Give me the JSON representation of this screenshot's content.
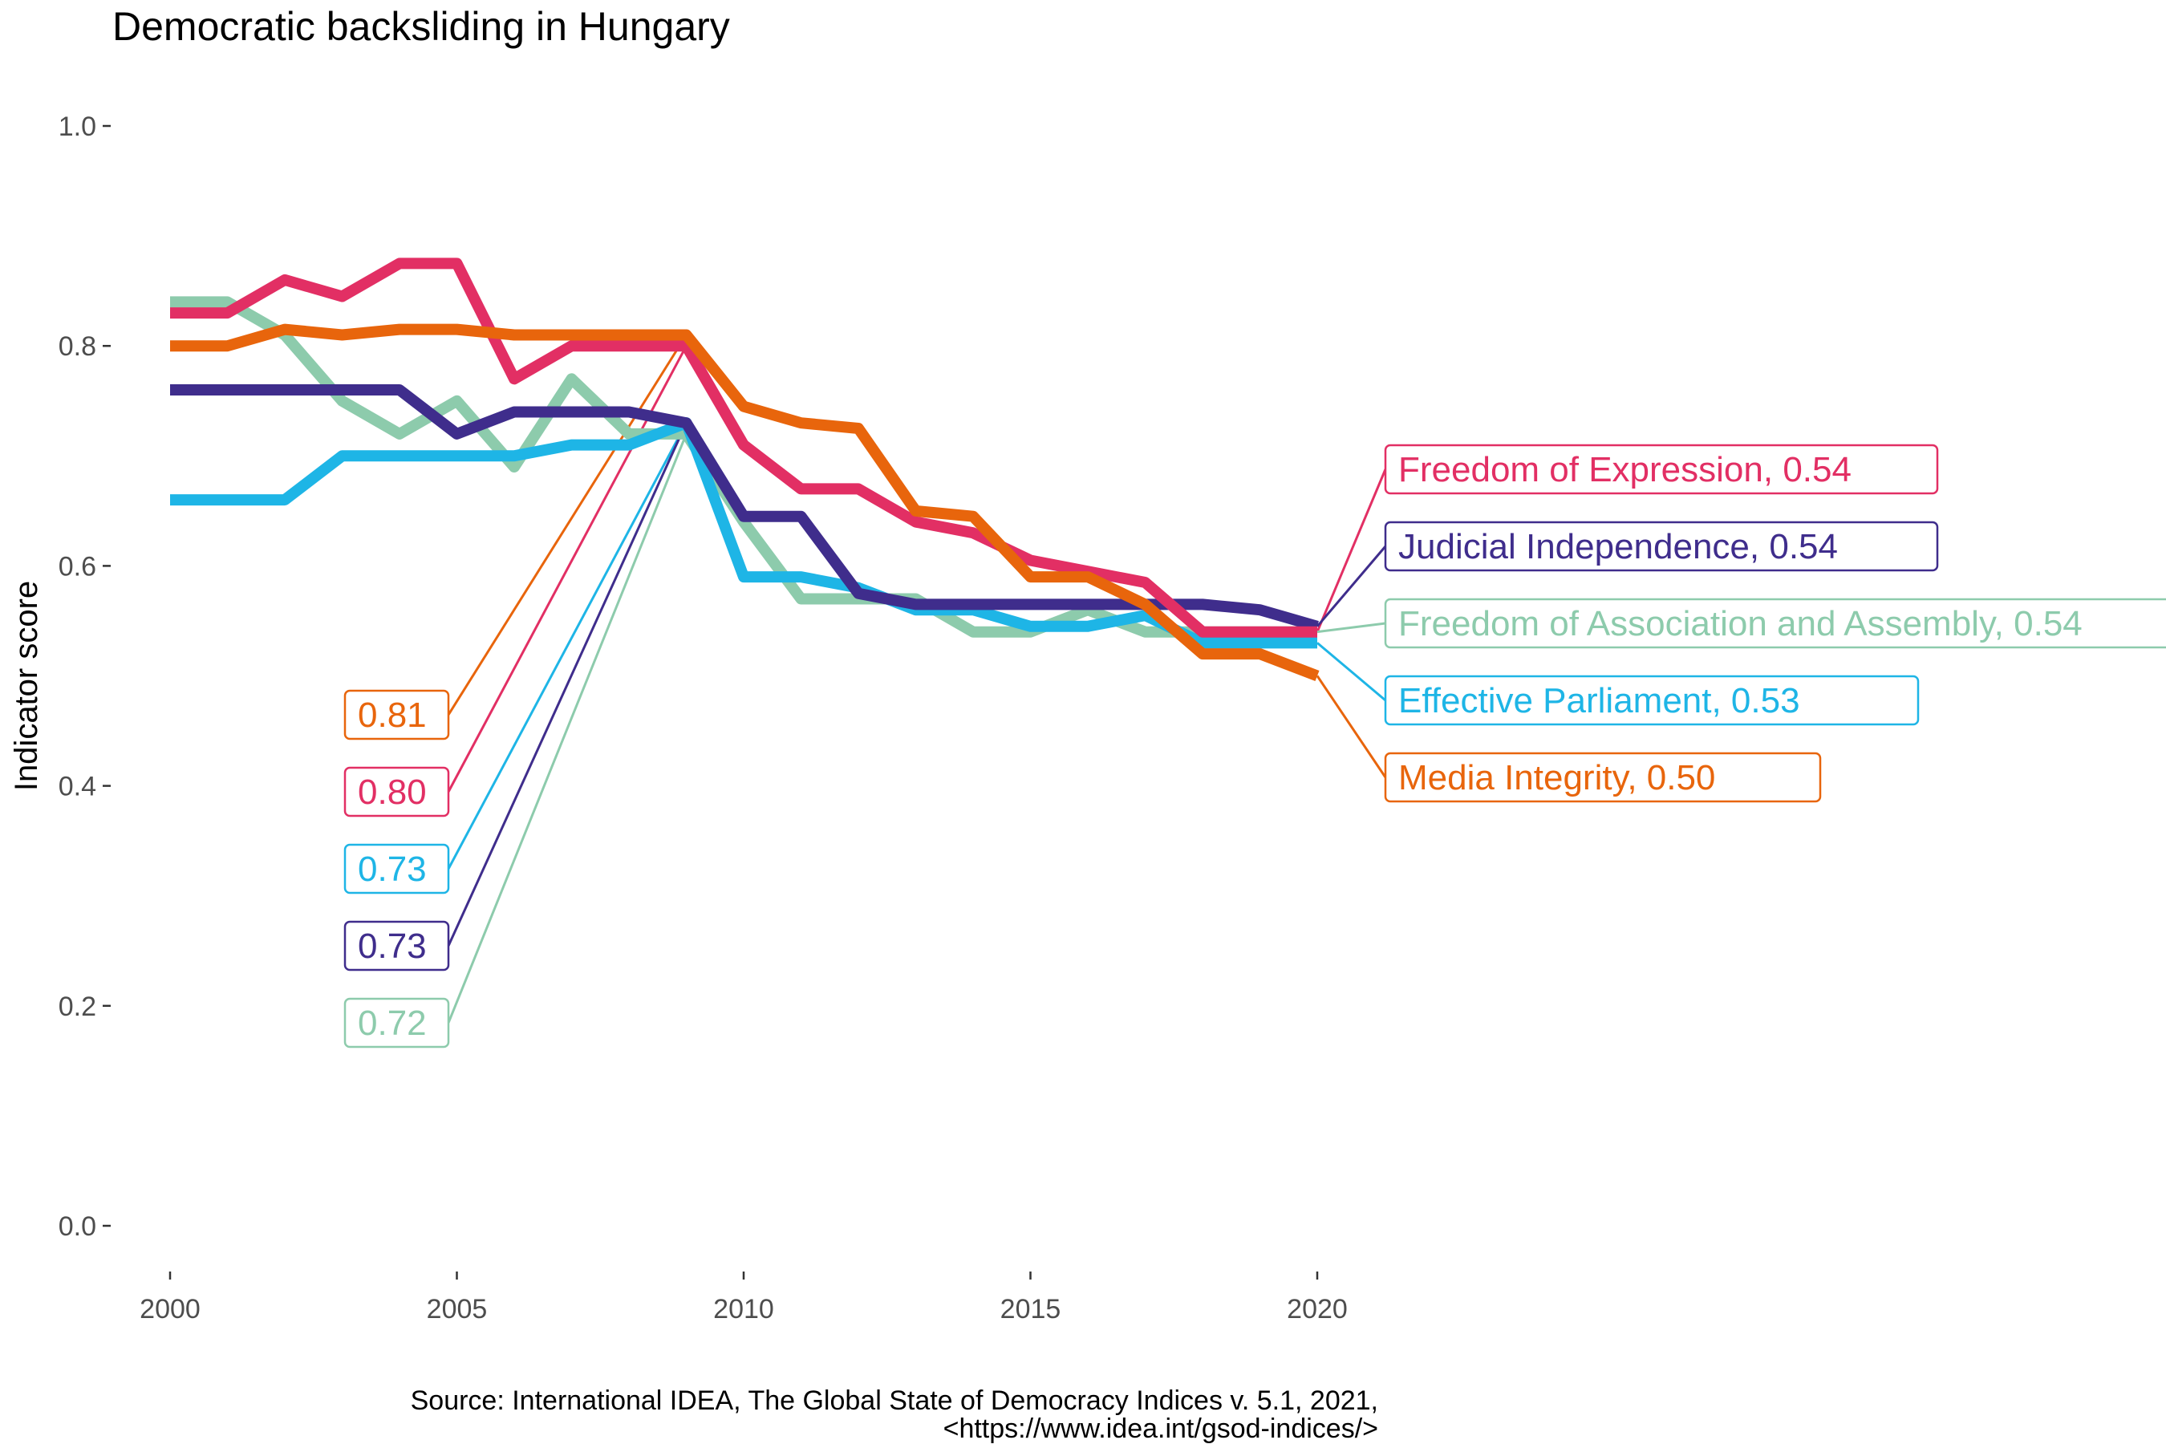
{
  "chart_data": {
    "type": "line",
    "title": "Democratic backsliding in Hungary",
    "xlabel": "",
    "ylabel": "Indicator score",
    "xlim": [
      2000,
      2020
    ],
    "ylim": [
      0,
      1
    ],
    "x_ticks": [
      2000,
      2005,
      2010,
      2015,
      2020
    ],
    "y_ticks": [
      "0.0",
      "0.2",
      "0.4",
      "0.6",
      "0.8",
      "1.0"
    ],
    "grid": false,
    "legend": "direct labels at line ends",
    "x": [
      2000,
      2001,
      2002,
      2003,
      2004,
      2005,
      2006,
      2007,
      2008,
      2009,
      2010,
      2011,
      2012,
      2013,
      2014,
      2015,
      2016,
      2017,
      2018,
      2019,
      2020
    ],
    "series": [
      {
        "name": "Freedom of Association and Assembly",
        "end_label": "Freedom of Association and Assembly, 0.54",
        "highlight_label": "0.72",
        "highlight_year": 2009,
        "color": "#8dcbac",
        "values": [
          0.84,
          0.84,
          0.81,
          0.75,
          0.72,
          0.75,
          0.69,
          0.77,
          0.72,
          0.72,
          0.64,
          0.57,
          0.57,
          0.57,
          0.54,
          0.54,
          0.56,
          0.54,
          0.54,
          0.54,
          0.54
        ]
      },
      {
        "name": "Effective Parliament",
        "end_label": "Effective Parliament, 0.53",
        "highlight_label": "0.73",
        "highlight_year": 2009,
        "color": "#1eb5e6",
        "values": [
          0.66,
          0.66,
          0.66,
          0.7,
          0.7,
          0.7,
          0.7,
          0.71,
          0.71,
          0.73,
          0.59,
          0.59,
          0.58,
          0.56,
          0.56,
          0.545,
          0.545,
          0.555,
          0.53,
          0.53,
          0.53
        ]
      },
      {
        "name": "Judicial Independence",
        "end_label": "Judicial Independence, 0.54",
        "highlight_label": "0.73",
        "highlight_year": 2009,
        "color": "#3f2d8c",
        "values": [
          0.76,
          0.76,
          0.76,
          0.76,
          0.76,
          0.72,
          0.74,
          0.74,
          0.74,
          0.73,
          0.645,
          0.645,
          0.575,
          0.565,
          0.565,
          0.565,
          0.565,
          0.565,
          0.565,
          0.56,
          0.545
        ]
      },
      {
        "name": "Freedom of Expression",
        "end_label": "Freedom of Expression, 0.54",
        "highlight_label": "0.80",
        "highlight_year": 2009,
        "color": "#e22f64",
        "values": [
          0.83,
          0.83,
          0.86,
          0.845,
          0.875,
          0.875,
          0.77,
          0.8,
          0.8,
          0.8,
          0.71,
          0.67,
          0.67,
          0.64,
          0.63,
          0.605,
          0.595,
          0.585,
          0.54,
          0.54,
          0.54
        ]
      },
      {
        "name": "Media Integrity",
        "end_label": "Media Integrity, 0.50",
        "highlight_label": "0.81",
        "highlight_year": 2009,
        "color": "#e8650c",
        "values": [
          0.8,
          0.8,
          0.815,
          0.81,
          0.815,
          0.815,
          0.81,
          0.81,
          0.81,
          0.81,
          0.745,
          0.73,
          0.725,
          0.65,
          0.645,
          0.59,
          0.59,
          0.565,
          0.52,
          0.52,
          0.5
        ]
      }
    ]
  },
  "caption_line1": "Source: International IDEA, The Global State of Democracy Indices v. 5.1, 2021,",
  "caption_line2": "<https://www.idea.int/gsod-indices/>"
}
